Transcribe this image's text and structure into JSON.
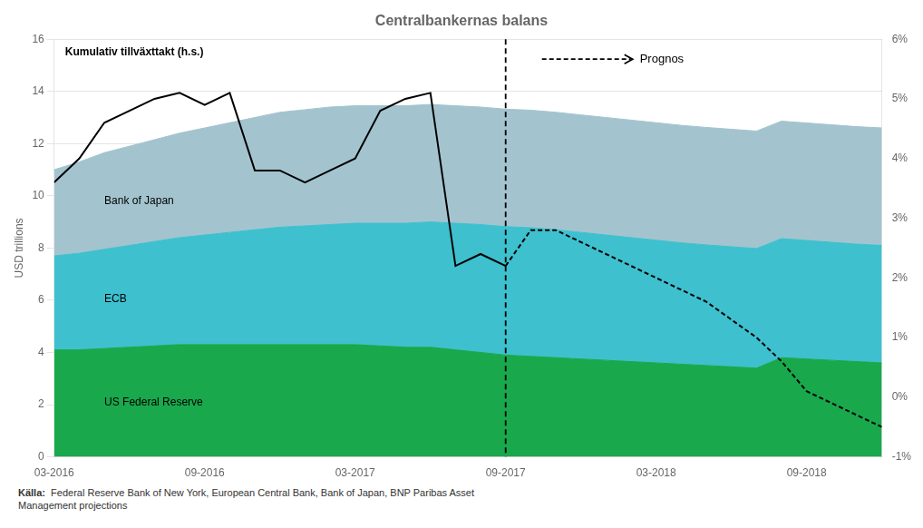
{
  "chart_data": {
    "type": "line",
    "title": "Centralbankernas balans",
    "y_label": "USD trillions",
    "stacked": true,
    "grid": true,
    "xlim": [
      0,
      33
    ],
    "xticks": [
      {
        "value": 0,
        "label": "03-2016"
      },
      {
        "value": 6,
        "label": "09-2016"
      },
      {
        "value": 12,
        "label": "03-2017"
      },
      {
        "value": 18,
        "label": "09-2017"
      },
      {
        "value": 24,
        "label": "03-2018"
      },
      {
        "value": 30,
        "label": "09-2018"
      }
    ],
    "ylim": [
      0,
      16
    ],
    "yticks": [
      0,
      2,
      4,
      6,
      8,
      10,
      12,
      14,
      16
    ],
    "y2lim": [
      -0.01,
      0.06
    ],
    "y2ticks": [
      {
        "value": -0.01,
        "label": "-1%"
      },
      {
        "value": 0.0,
        "label": "0%"
      },
      {
        "value": 0.01,
        "label": "1%"
      },
      {
        "value": 0.02,
        "label": "2%"
      },
      {
        "value": 0.03,
        "label": "3%"
      },
      {
        "value": 0.04,
        "label": "4%"
      },
      {
        "value": 0.05,
        "label": "5%"
      },
      {
        "value": 0.06,
        "label": "6%"
      }
    ],
    "series": [
      {
        "name": "US Federal Reserve",
        "type": "area",
        "color": "#19a84c",
        "x": [
          0,
          1,
          2,
          3,
          4,
          5,
          6,
          7,
          8,
          9,
          10,
          11,
          12,
          13,
          14,
          15,
          16,
          17,
          18,
          19,
          20,
          21,
          22,
          23,
          24,
          25,
          26,
          27,
          28,
          29,
          30,
          31,
          32,
          33
        ],
        "values": [
          4.1,
          4.1,
          4.15,
          4.2,
          4.25,
          4.3,
          4.3,
          4.3,
          4.3,
          4.3,
          4.3,
          4.3,
          4.3,
          4.25,
          4.2,
          4.2,
          4.1,
          4.0,
          3.9,
          3.85,
          3.8,
          3.75,
          3.7,
          3.65,
          3.6,
          3.55,
          3.5,
          3.45,
          3.4,
          3.8,
          3.75,
          3.7,
          3.65,
          3.6
        ]
      },
      {
        "name": "ECB",
        "type": "area",
        "color": "#3ec0ce",
        "x": [
          0,
          1,
          2,
          3,
          4,
          5,
          6,
          7,
          8,
          9,
          10,
          11,
          12,
          13,
          14,
          15,
          16,
          17,
          18,
          19,
          20,
          21,
          22,
          23,
          24,
          25,
          26,
          27,
          28,
          29,
          30,
          31,
          32,
          33
        ],
        "values": [
          3.6,
          3.7,
          3.8,
          3.9,
          4.0,
          4.1,
          4.2,
          4.3,
          4.4,
          4.5,
          4.55,
          4.6,
          4.65,
          4.7,
          4.75,
          4.8,
          4.85,
          4.9,
          4.92,
          4.93,
          4.9,
          4.85,
          4.8,
          4.75,
          4.7,
          4.65,
          4.62,
          4.6,
          4.58,
          4.56,
          4.54,
          4.52,
          4.5,
          4.5
        ]
      },
      {
        "name": "Bank of Japan",
        "type": "area",
        "color": "#a3c4cf",
        "x": [
          0,
          1,
          2,
          3,
          4,
          5,
          6,
          7,
          8,
          9,
          10,
          11,
          12,
          13,
          14,
          15,
          16,
          17,
          18,
          19,
          20,
          21,
          22,
          23,
          24,
          25,
          26,
          27,
          28,
          29,
          30,
          31,
          32,
          33
        ],
        "values": [
          3.3,
          3.5,
          3.7,
          3.8,
          3.9,
          4.0,
          4.1,
          4.2,
          4.3,
          4.4,
          4.45,
          4.5,
          4.5,
          4.5,
          4.5,
          4.5,
          4.5,
          4.5,
          4.5,
          4.5,
          4.5,
          4.5,
          4.5,
          4.5,
          4.5,
          4.5,
          4.5,
          4.5,
          4.5,
          4.5,
          4.5,
          4.5,
          4.5,
          4.5
        ]
      },
      {
        "name": "Kumulativ tillväxttakt (h.s.)",
        "type": "line",
        "axis": "y2",
        "color": "#000000",
        "line_style": "solid",
        "x": [
          0,
          1,
          2,
          3,
          4,
          5,
          6,
          7,
          8,
          9,
          10,
          11,
          12,
          13,
          14,
          15,
          16,
          17,
          18
        ],
        "values": [
          0.036,
          0.04,
          0.046,
          0.048,
          0.05,
          0.051,
          0.049,
          0.051,
          0.038,
          0.038,
          0.036,
          0.038,
          0.04,
          0.048,
          0.05,
          0.051,
          0.022,
          0.024,
          0.022
        ]
      },
      {
        "type": "line",
        "axis": "y2",
        "color": "#000000",
        "line_style": "dashed",
        "x": [
          18,
          19,
          20,
          21,
          22,
          23,
          24,
          25,
          26,
          27,
          28,
          29,
          30,
          31,
          32,
          33
        ],
        "values": [
          0.022,
          0.028,
          0.028,
          0.026,
          0.024,
          0.022,
          0.02,
          0.018,
          0.016,
          0.013,
          0.01,
          0.006,
          0.001,
          -0.001,
          -0.003,
          -0.005
        ]
      }
    ],
    "vline": 18,
    "annotations": [
      "Prognos"
    ],
    "source": [
      "Källa:",
      "  Federal Reserve Bank of New York, European Central Bank, Bank of Japan, BNP Paribas Asset\nManagement projections"
    ]
  }
}
